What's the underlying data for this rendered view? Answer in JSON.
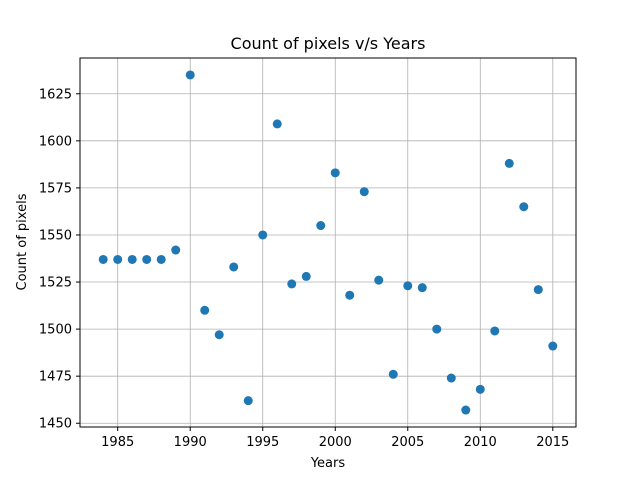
{
  "chart_data": {
    "type": "scatter",
    "title": "Count of pixels v/s Years",
    "xlabel": "Years",
    "ylabel": "Count of pixels",
    "xlim": [
      1982.4,
      2016.6
    ],
    "ylim": [
      1448,
      1644
    ],
    "xticks": [
      1985,
      1990,
      1995,
      2000,
      2005,
      2010,
      2015
    ],
    "yticks": [
      1450,
      1475,
      1500,
      1525,
      1550,
      1575,
      1600,
      1625
    ],
    "grid": true,
    "marker_color": "#1f77b4",
    "points": [
      {
        "x": 1984,
        "y": 1537
      },
      {
        "x": 1985,
        "y": 1537
      },
      {
        "x": 1986,
        "y": 1537
      },
      {
        "x": 1987,
        "y": 1537
      },
      {
        "x": 1988,
        "y": 1537
      },
      {
        "x": 1989,
        "y": 1542
      },
      {
        "x": 1990,
        "y": 1635
      },
      {
        "x": 1991,
        "y": 1510
      },
      {
        "x": 1992,
        "y": 1497
      },
      {
        "x": 1993,
        "y": 1533
      },
      {
        "x": 1994,
        "y": 1462
      },
      {
        "x": 1995,
        "y": 1550
      },
      {
        "x": 1996,
        "y": 1609
      },
      {
        "x": 1997,
        "y": 1524
      },
      {
        "x": 1998,
        "y": 1528
      },
      {
        "x": 1999,
        "y": 1555
      },
      {
        "x": 2000,
        "y": 1583
      },
      {
        "x": 2001,
        "y": 1518
      },
      {
        "x": 2002,
        "y": 1573
      },
      {
        "x": 2003,
        "y": 1526
      },
      {
        "x": 2004,
        "y": 1476
      },
      {
        "x": 2005,
        "y": 1523
      },
      {
        "x": 2006,
        "y": 1522
      },
      {
        "x": 2007,
        "y": 1500
      },
      {
        "x": 2008,
        "y": 1474
      },
      {
        "x": 2009,
        "y": 1457
      },
      {
        "x": 2010,
        "y": 1468
      },
      {
        "x": 2011,
        "y": 1499
      },
      {
        "x": 2012,
        "y": 1588
      },
      {
        "x": 2013,
        "y": 1565
      },
      {
        "x": 2014,
        "y": 1521
      },
      {
        "x": 2015,
        "y": 1491
      }
    ]
  }
}
